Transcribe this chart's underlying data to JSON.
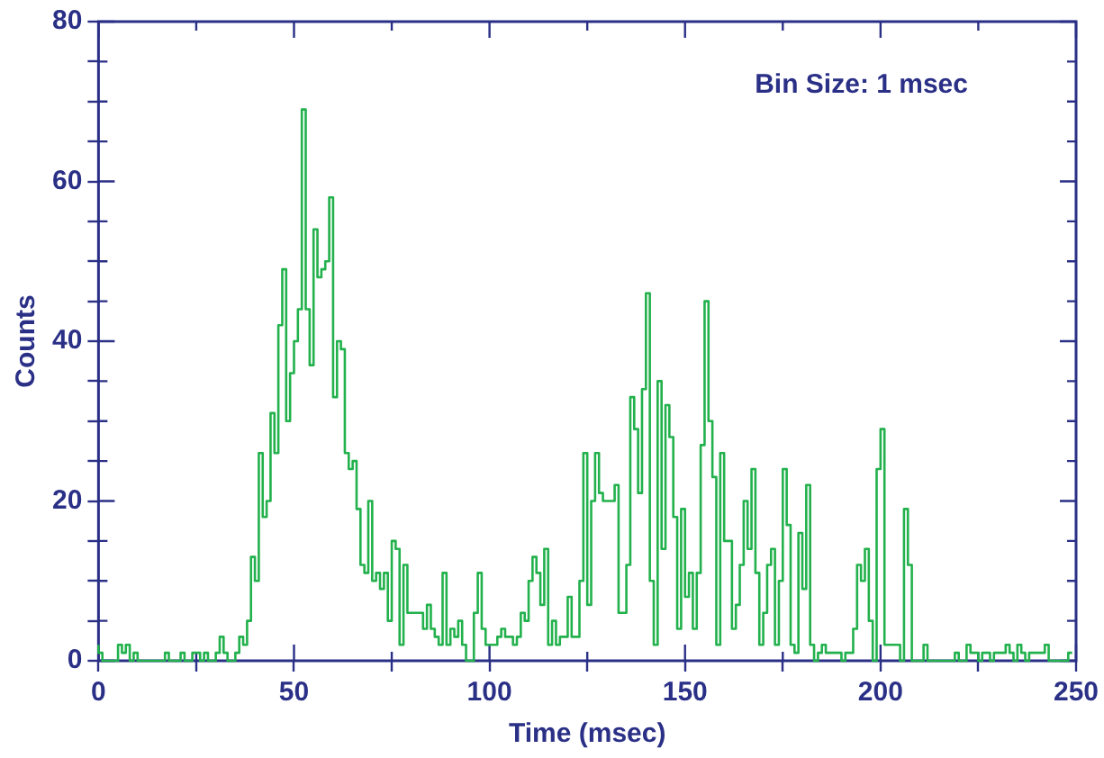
{
  "chart_data": {
    "type": "step",
    "xlabel": "Time (msec)",
    "ylabel": "Counts",
    "annotations": [
      "Bin Size: 1 msec"
    ],
    "color": "#22b14c",
    "x": [
      0,
      1,
      2,
      3,
      4,
      5,
      6,
      7,
      8,
      9,
      10,
      11,
      12,
      13,
      14,
      15,
      16,
      17,
      18,
      19,
      20,
      21,
      22,
      23,
      24,
      25,
      26,
      27,
      28,
      29,
      30,
      31,
      32,
      33,
      34,
      35,
      36,
      37,
      38,
      39,
      40,
      41,
      42,
      43,
      44,
      45,
      46,
      47,
      48,
      49,
      50,
      51,
      52,
      53,
      54,
      55,
      56,
      57,
      58,
      59,
      60,
      61,
      62,
      63,
      64,
      65,
      66,
      67,
      68,
      69,
      70,
      71,
      72,
      73,
      74,
      75,
      76,
      77,
      78,
      79,
      80,
      81,
      82,
      83,
      84,
      85,
      86,
      87,
      88,
      89,
      90,
      91,
      92,
      93,
      94,
      95,
      96,
      97,
      98,
      99,
      100,
      101,
      102,
      103,
      104,
      105,
      106,
      107,
      108,
      109,
      110,
      111,
      112,
      113,
      114,
      115,
      116,
      117,
      118,
      119,
      120,
      121,
      122,
      123,
      124,
      125,
      126,
      127,
      128,
      129,
      130,
      131,
      132,
      133,
      134,
      135,
      136,
      137,
      138,
      139,
      140,
      141,
      142,
      143,
      144,
      145,
      146,
      147,
      148,
      149,
      150,
      151,
      152,
      153,
      154,
      155,
      156,
      157,
      158,
      159,
      160,
      161,
      162,
      163,
      164,
      165,
      166,
      167,
      168,
      169,
      170,
      171,
      172,
      173,
      174,
      175,
      176,
      177,
      178,
      179,
      180,
      181,
      182,
      183,
      184,
      185,
      186,
      187,
      188,
      189,
      190,
      191,
      192,
      193,
      194,
      195,
      196,
      197,
      198,
      199,
      200,
      201,
      202,
      203,
      204,
      205,
      206,
      207,
      208,
      209,
      210,
      211,
      212,
      213,
      214,
      215,
      216,
      217,
      218,
      219,
      220,
      221,
      222,
      223,
      224,
      225,
      226,
      227,
      228,
      229,
      230,
      231,
      232,
      233,
      234,
      235,
      236,
      237,
      238,
      239,
      240,
      241,
      242,
      243,
      244,
      245,
      246,
      247,
      248,
      249
    ],
    "values": [
      2,
      1,
      0,
      0,
      0,
      0,
      2,
      1,
      2,
      0,
      1,
      0,
      0,
      0,
      0,
      0,
      0,
      0,
      1,
      0,
      0,
      0,
      1,
      0,
      0,
      1,
      1,
      0,
      1,
      0,
      0,
      1,
      3,
      1,
      0,
      0,
      1,
      3,
      2,
      5,
      13,
      10,
      26,
      18,
      20,
      31,
      26,
      42,
      49,
      30,
      36,
      40,
      44,
      69,
      44,
      37,
      54,
      48,
      49,
      50,
      58,
      33,
      40,
      39,
      26,
      24,
      25,
      19,
      12,
      11,
      20,
      10,
      11,
      9,
      11,
      5,
      15,
      14,
      2,
      12,
      6,
      6,
      6,
      6,
      4,
      7,
      4,
      3,
      2,
      11,
      2,
      4,
      3,
      5,
      2,
      0,
      0,
      6,
      11,
      4,
      2,
      2,
      2,
      3,
      4,
      3,
      3,
      2,
      3,
      6,
      5,
      10,
      13,
      11,
      7,
      14,
      2,
      5,
      2,
      3,
      3,
      8,
      3,
      3,
      10,
      26,
      7,
      20,
      26,
      21,
      20,
      20,
      20,
      22,
      6,
      6,
      12,
      33,
      29,
      21,
      34,
      46,
      10,
      2,
      35,
      14,
      32,
      28,
      18,
      4,
      19,
      8,
      11,
      4,
      11,
      27,
      45,
      30,
      23,
      2,
      26,
      15,
      15,
      4,
      7,
      12,
      20,
      14,
      24,
      11,
      2,
      6,
      12,
      14,
      2,
      10,
      24,
      17,
      2,
      1,
      16,
      9,
      22,
      2,
      0,
      1,
      2,
      1,
      1,
      1,
      1,
      0,
      1,
      1,
      4,
      12,
      10,
      14,
      5,
      0,
      24,
      29,
      2,
      2,
      2,
      2,
      0,
      19,
      12,
      0,
      0,
      0,
      2,
      0,
      0,
      0,
      0,
      0,
      0,
      0,
      1,
      0,
      0,
      2,
      1,
      1,
      0,
      1,
      1,
      0,
      1,
      1,
      1,
      2,
      1,
      0,
      2,
      1,
      0,
      1,
      1,
      1,
      1,
      2,
      0,
      0,
      0,
      0,
      0,
      1
    ],
    "xlim": [
      0,
      250
    ],
    "xticks": [
      0,
      {
        "value": 25,
        "label": null
      },
      50,
      {
        "value": 75,
        "label": null
      },
      100,
      {
        "value": 125,
        "label": null
      },
      150,
      {
        "value": 175,
        "label": null
      },
      200,
      {
        "value": 225,
        "label": null
      },
      250
    ],
    "ylim": [
      0,
      80
    ],
    "yticks": [
      0,
      {
        "value": 5,
        "label": null
      },
      {
        "value": 10,
        "label": null
      },
      {
        "value": 15,
        "label": null
      },
      20,
      {
        "value": 25,
        "label": null
      },
      {
        "value": 30,
        "label": null
      },
      {
        "value": 35,
        "label": null
      },
      40,
      {
        "value": 45,
        "label": null
      },
      {
        "value": 50,
        "label": null
      },
      {
        "value": 55,
        "label": null
      },
      60,
      {
        "value": 65,
        "label": null
      },
      {
        "value": 70,
        "label": null
      },
      {
        "value": 75,
        "label": null
      },
      80
    ],
    "grid": false,
    "legend": false
  }
}
